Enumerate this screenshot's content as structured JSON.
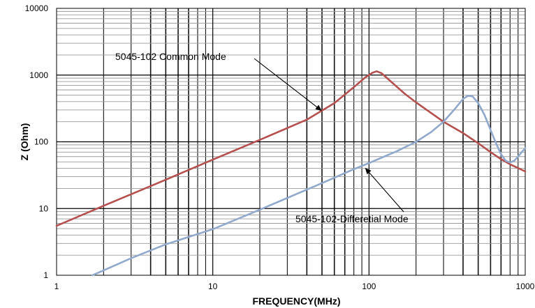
{
  "chart_data": {
    "type": "line",
    "title": "",
    "xlabel": "FREQUENCY(MHz)",
    "ylabel": "Z (Ohm)",
    "x_scale": "log",
    "y_scale": "log",
    "xlim": [
      1,
      1000
    ],
    "ylim": [
      1,
      10000
    ],
    "x_ticks": [
      "1",
      "10",
      "100",
      "1000"
    ],
    "y_ticks": [
      "1",
      "10",
      "100",
      "1000",
      "10000"
    ],
    "grid": true,
    "legend": "none",
    "series": [
      {
        "color": "#b5504e",
        "x": [
          1,
          2,
          5,
          10,
          20,
          40,
          60,
          80,
          95,
          105,
          112,
          120,
          140,
          170,
          200,
          250,
          300,
          400,
          500,
          600,
          700,
          800,
          1000
        ],
        "y": [
          5.5,
          11,
          27,
          54,
          107,
          215,
          380,
          660,
          930,
          1080,
          1140,
          1070,
          780,
          520,
          390,
          270,
          200,
          135,
          95,
          70,
          55,
          46,
          36
        ]
      },
      {
        "color": "#91a9cc",
        "x": [
          1.7,
          3,
          5,
          10,
          20,
          50,
          80,
          100,
          150,
          200,
          250,
          300,
          350,
          400,
          430,
          460,
          500,
          550,
          600,
          650,
          700,
          750,
          800,
          850,
          900,
          950,
          1000
        ],
        "y": [
          1,
          1.8,
          2.9,
          4.9,
          9.6,
          24,
          39,
          48,
          72,
          100,
          140,
          200,
          300,
          440,
          490,
          480,
          380,
          250,
          150,
          95,
          65,
          52,
          49,
          52,
          60,
          70,
          80
        ]
      }
    ],
    "annotations": [
      {
        "text": "5045-102 Common Mode",
        "x": 50,
        "y": 310
      },
      {
        "text": "5045-102-Differetial Mode",
        "x": 95,
        "y": 42
      }
    ]
  }
}
